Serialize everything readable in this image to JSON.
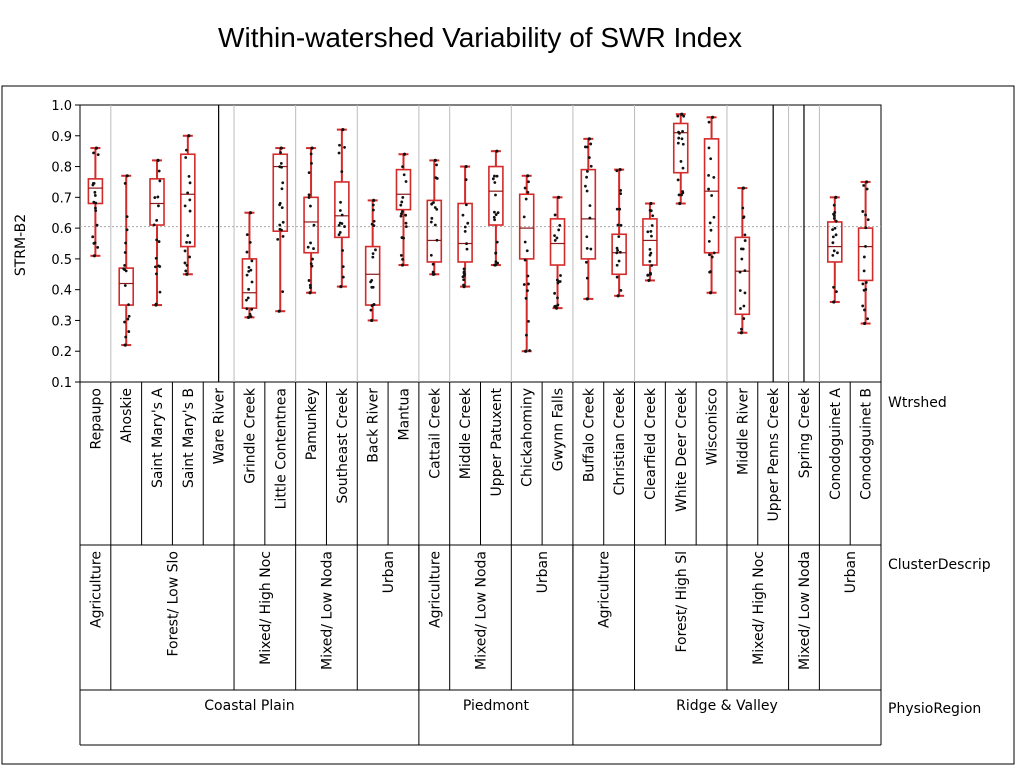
{
  "title": "Within-watershed Variability of SWR Index",
  "chart_data": {
    "type": "box",
    "ylabel": "STRM-B2",
    "ylim": [
      0.1,
      1.0
    ],
    "yticks": [
      "0.1",
      "0.2",
      "0.3",
      "0.4",
      "0.5",
      "0.6",
      "0.7",
      "0.8",
      "0.9",
      "1.0"
    ],
    "reference_line": 0.605,
    "row_labels": {
      "watershed": "Wtrshed",
      "cluster": "ClusterDescrip",
      "region": "PhysioRegion"
    },
    "watersheds": [
      {
        "name": "Repaupo",
        "min": 0.51,
        "q1": 0.68,
        "median": 0.73,
        "q3": 0.76,
        "max": 0.86
      },
      {
        "name": "Ahoskie",
        "min": 0.22,
        "q1": 0.35,
        "median": 0.42,
        "q3": 0.47,
        "max": 0.77
      },
      {
        "name": "Saint Mary's A",
        "min": 0.35,
        "q1": 0.61,
        "median": 0.68,
        "q3": 0.76,
        "max": 0.82
      },
      {
        "name": "Saint Mary's B",
        "min": 0.45,
        "q1": 0.54,
        "median": 0.71,
        "q3": 0.84,
        "max": 0.9
      },
      {
        "name": "Ware River",
        "min": null,
        "q1": null,
        "median": null,
        "q3": null,
        "max": null
      },
      {
        "name": "Grindle Creek",
        "min": 0.31,
        "q1": 0.34,
        "median": 0.39,
        "q3": 0.5,
        "max": 0.65
      },
      {
        "name": "Little Contentnea",
        "min": 0.33,
        "q1": 0.59,
        "median": 0.8,
        "q3": 0.84,
        "max": 0.86
      },
      {
        "name": "Pamunkey",
        "min": 0.39,
        "q1": 0.52,
        "median": 0.62,
        "q3": 0.7,
        "max": 0.86
      },
      {
        "name": "Southeast Creek",
        "min": 0.41,
        "q1": 0.57,
        "median": 0.64,
        "q3": 0.75,
        "max": 0.92
      },
      {
        "name": "Back River",
        "min": 0.3,
        "q1": 0.35,
        "median": 0.45,
        "q3": 0.54,
        "max": 0.69
      },
      {
        "name": "Mantua",
        "min": 0.48,
        "q1": 0.66,
        "median": 0.71,
        "q3": 0.79,
        "max": 0.84
      },
      {
        "name": "Cattail Creek",
        "min": 0.45,
        "q1": 0.49,
        "median": 0.56,
        "q3": 0.69,
        "max": 0.82
      },
      {
        "name": "Middle Creek",
        "min": 0.41,
        "q1": 0.49,
        "median": 0.55,
        "q3": 0.68,
        "max": 0.8
      },
      {
        "name": "Upper Patuxent",
        "min": 0.48,
        "q1": 0.61,
        "median": 0.72,
        "q3": 0.8,
        "max": 0.85
      },
      {
        "name": "Chickahominy",
        "min": 0.2,
        "q1": 0.5,
        "median": 0.6,
        "q3": 0.71,
        "max": 0.77
      },
      {
        "name": "Gwynn Falls",
        "min": 0.34,
        "q1": 0.48,
        "median": 0.55,
        "q3": 0.63,
        "max": 0.7
      },
      {
        "name": "Buffalo Creek",
        "min": 0.37,
        "q1": 0.5,
        "median": 0.63,
        "q3": 0.79,
        "max": 0.89
      },
      {
        "name": "Christian Creek",
        "min": 0.38,
        "q1": 0.45,
        "median": 0.52,
        "q3": 0.58,
        "max": 0.79
      },
      {
        "name": "Clearfield Creek",
        "min": 0.43,
        "q1": 0.48,
        "median": 0.56,
        "q3": 0.63,
        "max": 0.68
      },
      {
        "name": "White Deer Creek",
        "min": 0.68,
        "q1": 0.78,
        "median": 0.91,
        "q3": 0.94,
        "max": 0.97
      },
      {
        "name": "Wisconisco",
        "min": 0.39,
        "q1": 0.52,
        "median": 0.72,
        "q3": 0.89,
        "max": 0.96
      },
      {
        "name": "Middle River",
        "min": 0.26,
        "q1": 0.32,
        "median": 0.46,
        "q3": 0.57,
        "max": 0.73
      },
      {
        "name": "Upper Penns Creek",
        "min": null,
        "q1": null,
        "median": null,
        "q3": null,
        "max": null
      },
      {
        "name": "Spring Creek",
        "min": null,
        "q1": null,
        "median": null,
        "q3": null,
        "max": null
      },
      {
        "name": "Conodoguinet A",
        "min": 0.36,
        "q1": 0.49,
        "median": 0.54,
        "q3": 0.62,
        "max": 0.7
      },
      {
        "name": "Conodoguinet B",
        "min": 0.29,
        "q1": 0.43,
        "median": 0.54,
        "q3": 0.6,
        "max": 0.75
      }
    ],
    "clusters": [
      {
        "label": "Agriculture",
        "from": 0,
        "to": 1
      },
      {
        "label": "Forest/ Low Slo",
        "from": 1,
        "to": 5
      },
      {
        "label": "Mixed/ High Noc",
        "from": 5,
        "to": 7
      },
      {
        "label": "Mixed/ Low Noda",
        "from": 7,
        "to": 9
      },
      {
        "label": "Urban",
        "from": 9,
        "to": 11
      },
      {
        "label": "Agriculture",
        "from": 11,
        "to": 12
      },
      {
        "label": "Mixed/ Low Noda",
        "from": 12,
        "to": 14
      },
      {
        "label": "Urban",
        "from": 14,
        "to": 16
      },
      {
        "label": "Agriculture",
        "from": 16,
        "to": 18
      },
      {
        "label": "Forest/ High Sl",
        "from": 18,
        "to": 21
      },
      {
        "label": "Mixed/ High Noc",
        "from": 21,
        "to": 23
      },
      {
        "label": "Mixed/ Low Noda",
        "from": 23,
        "to": 24
      },
      {
        "label": "Urban",
        "from": 24,
        "to": 26
      }
    ],
    "regions": [
      {
        "label": "Coastal Plain",
        "from": 0,
        "to": 11
      },
      {
        "label": "Piedmont",
        "from": 11,
        "to": 16
      },
      {
        "label": "Ridge & Valley",
        "from": 16,
        "to": 26
      }
    ],
    "colors": {
      "box": "#d42a2a",
      "median": "#8c1a1a",
      "points": "#111111",
      "refline": "#aaaaaa",
      "divider": "#bbbbbb"
    }
  }
}
